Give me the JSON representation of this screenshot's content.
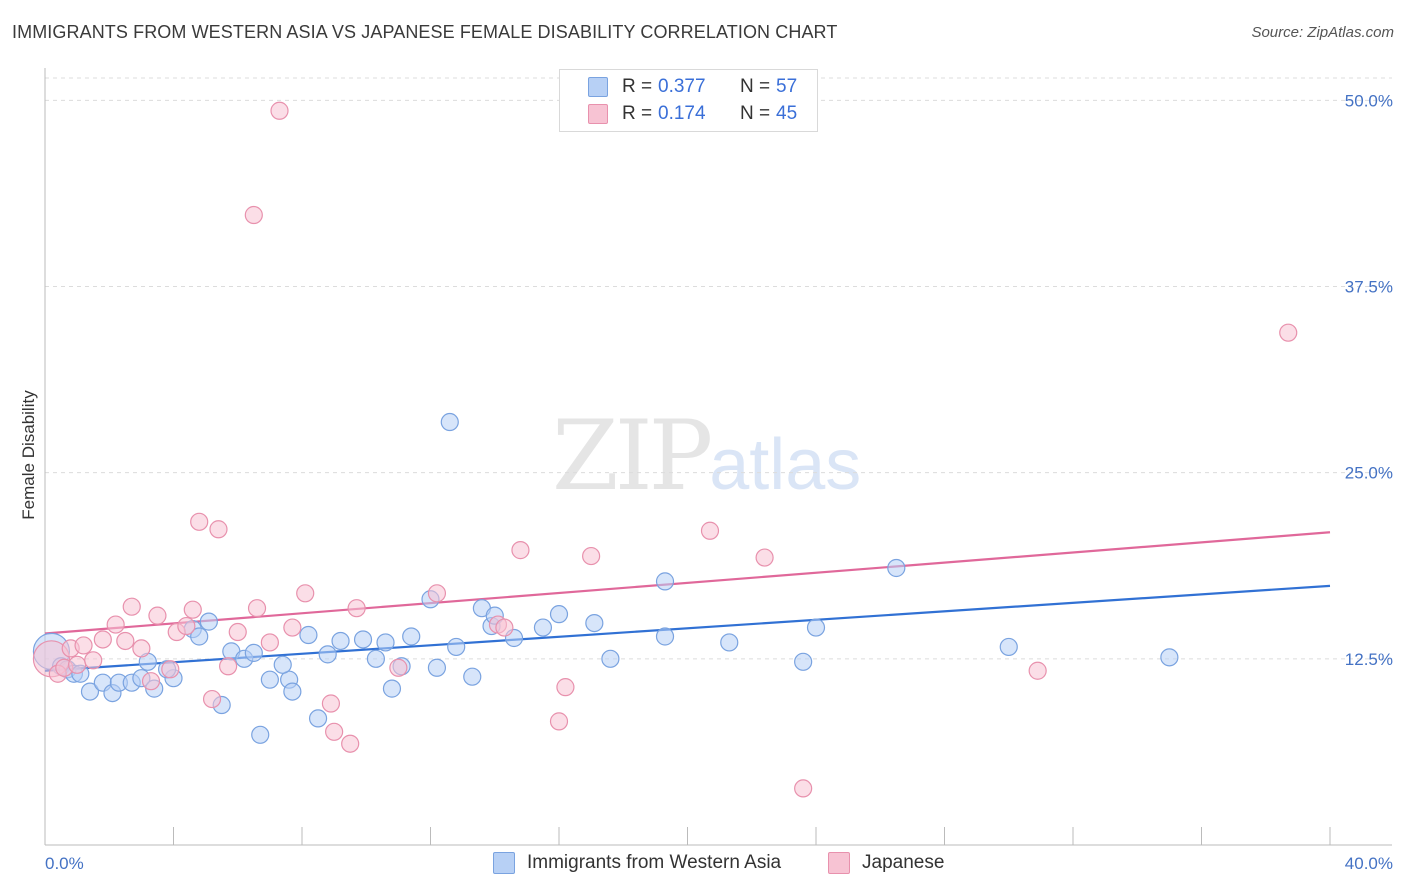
{
  "title": "IMMIGRANTS FROM WESTERN ASIA VS JAPANESE FEMALE DISABILITY CORRELATION CHART",
  "source": "Source: ZipAtlas.com",
  "watermark": {
    "zip": "ZIP",
    "atlas": "atlas"
  },
  "legend": {
    "rows": [
      {
        "r_label": "R =",
        "r_value": "0.377",
        "n_label": "N =",
        "n_value": "57"
      },
      {
        "r_label": "R =",
        "r_value": "0.174",
        "n_label": "N =",
        "n_value": "45"
      }
    ]
  },
  "bottom_legend": [
    "Immigrants from Western Asia",
    "Japanese"
  ],
  "colors": {
    "blue_fill": "#b7d0f5",
    "blue_stroke": "#7aa3e0",
    "blue_line": "#3171d4",
    "pink_fill": "#f7c3d3",
    "pink_stroke": "#e891ad",
    "pink_line": "#e0689a",
    "grid": "#dcdcdc",
    "axis_text": "#4472c4"
  },
  "chart_data": {
    "type": "scatter",
    "title": "IMMIGRANTS FROM WESTERN ASIA VS JAPANESE FEMALE DISABILITY CORRELATION CHART",
    "xlabel": "",
    "ylabel": "Female Disability",
    "xlim": [
      0,
      40
    ],
    "ylim": [
      0,
      51.5
    ],
    "y_ticks": [
      12.5,
      25.0,
      37.5,
      50.0
    ],
    "y_tick_labels": [
      "12.5%",
      "25.0%",
      "37.5%",
      "50.0%"
    ],
    "x_tick_labels": [
      "0.0%",
      "40.0%"
    ],
    "series": [
      {
        "name": "Immigrants from Western Asia",
        "color": "blue",
        "trend": {
          "x": [
            0,
            40
          ],
          "y": [
            11.7,
            17.4
          ]
        },
        "points": [
          [
            0.2,
            13.0,
            "big"
          ],
          [
            0.5,
            12.0
          ],
          [
            0.7,
            11.8
          ],
          [
            0.9,
            11.5
          ],
          [
            1.1,
            11.5
          ],
          [
            1.4,
            10.3
          ],
          [
            1.8,
            10.9
          ],
          [
            2.1,
            10.2
          ],
          [
            2.3,
            10.9
          ],
          [
            2.7,
            10.9
          ],
          [
            3.0,
            11.2
          ],
          [
            3.4,
            10.5
          ],
          [
            3.2,
            12.3
          ],
          [
            4.0,
            11.2
          ],
          [
            3.8,
            11.8
          ],
          [
            4.6,
            14.5
          ],
          [
            4.8,
            14.0
          ],
          [
            5.1,
            15.0
          ],
          [
            5.5,
            9.4
          ],
          [
            5.8,
            13.0
          ],
          [
            6.2,
            12.5
          ],
          [
            6.5,
            12.9
          ],
          [
            6.7,
            7.4
          ],
          [
            7.0,
            11.1
          ],
          [
            7.6,
            11.1
          ],
          [
            7.4,
            12.1
          ],
          [
            7.7,
            10.3
          ],
          [
            8.2,
            14.1
          ],
          [
            8.5,
            8.5
          ],
          [
            8.8,
            12.8
          ],
          [
            9.2,
            13.7
          ],
          [
            9.9,
            13.8
          ],
          [
            10.3,
            12.5
          ],
          [
            10.6,
            13.6
          ],
          [
            10.8,
            10.5
          ],
          [
            11.1,
            12.0
          ],
          [
            11.4,
            14.0
          ],
          [
            12.0,
            16.5
          ],
          [
            12.2,
            11.9
          ],
          [
            12.6,
            28.4
          ],
          [
            12.8,
            13.3
          ],
          [
            13.3,
            11.3
          ],
          [
            13.6,
            15.9
          ],
          [
            13.9,
            14.7
          ],
          [
            14.0,
            15.4
          ],
          [
            14.6,
            13.9
          ],
          [
            15.5,
            14.6
          ],
          [
            16.0,
            15.5
          ],
          [
            17.1,
            14.9
          ],
          [
            17.6,
            12.5
          ],
          [
            19.3,
            17.7
          ],
          [
            19.3,
            14.0
          ],
          [
            21.3,
            13.6
          ],
          [
            23.6,
            12.3
          ],
          [
            24.0,
            14.6
          ],
          [
            26.5,
            18.6
          ],
          [
            30.0,
            13.3
          ],
          [
            35.0,
            12.6
          ]
        ]
      },
      {
        "name": "Japanese",
        "color": "pink",
        "trend": {
          "x": [
            0,
            40
          ],
          "y": [
            14.2,
            21.0
          ]
        },
        "points": [
          [
            0.2,
            12.5,
            "big"
          ],
          [
            0.4,
            11.5
          ],
          [
            0.6,
            11.9
          ],
          [
            0.8,
            13.2
          ],
          [
            1.0,
            12.1
          ],
          [
            1.2,
            13.4
          ],
          [
            1.5,
            12.4
          ],
          [
            1.8,
            13.8
          ],
          [
            2.2,
            14.8
          ],
          [
            2.5,
            13.7
          ],
          [
            2.7,
            16.0
          ],
          [
            3.0,
            13.2
          ],
          [
            3.3,
            11.0
          ],
          [
            3.5,
            15.4
          ],
          [
            3.9,
            11.8
          ],
          [
            4.1,
            14.3
          ],
          [
            4.4,
            14.7
          ],
          [
            4.6,
            15.8
          ],
          [
            4.8,
            21.7
          ],
          [
            5.2,
            9.8
          ],
          [
            5.4,
            21.2
          ],
          [
            5.7,
            12.0
          ],
          [
            6.0,
            14.3
          ],
          [
            6.5,
            42.3
          ],
          [
            6.6,
            15.9
          ],
          [
            7.0,
            13.6
          ],
          [
            7.3,
            49.3
          ],
          [
            7.7,
            14.6
          ],
          [
            8.1,
            16.9
          ],
          [
            8.9,
            9.5
          ],
          [
            9.0,
            7.6
          ],
          [
            9.5,
            6.8
          ],
          [
            9.7,
            15.9
          ],
          [
            11.0,
            11.9
          ],
          [
            12.2,
            16.9
          ],
          [
            14.1,
            14.8
          ],
          [
            14.3,
            14.6
          ],
          [
            14.8,
            19.8
          ],
          [
            16.0,
            8.3
          ],
          [
            16.2,
            10.6
          ],
          [
            17.0,
            19.4
          ],
          [
            20.7,
            21.1
          ],
          [
            22.4,
            19.3
          ],
          [
            23.6,
            3.8
          ],
          [
            30.9,
            11.7
          ],
          [
            38.7,
            34.4
          ]
        ]
      }
    ]
  }
}
